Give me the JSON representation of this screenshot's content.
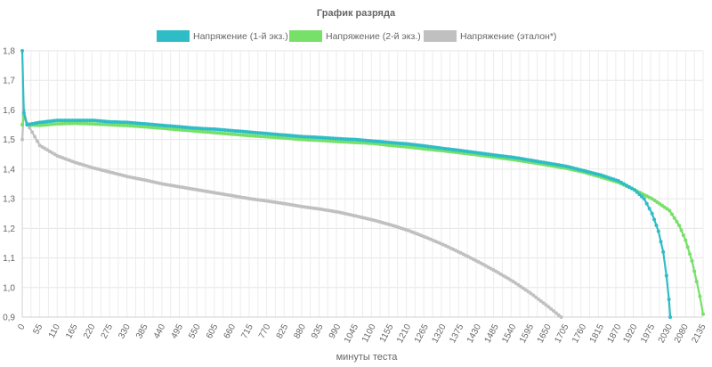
{
  "chart_data": {
    "type": "line",
    "title": "График разряда",
    "xlabel": "минуты теста",
    "ylabel": "",
    "ylim": [
      0.9,
      1.8
    ],
    "yticks": [
      "1,8",
      "1,7",
      "1,6",
      "1,5",
      "1,4",
      "1,3",
      "1,2",
      "1,1",
      "1,0",
      "0,9"
    ],
    "xlim": [
      0,
      2135
    ],
    "xtick_labels": [
      "0",
      "55",
      "110",
      "165",
      "220",
      "275",
      "330",
      "385",
      "440",
      "495",
      "550",
      "605",
      "660",
      "715",
      "770",
      "825",
      "880",
      "935",
      "990",
      "1045",
      "1100",
      "1155",
      "1210",
      "1265",
      "1320",
      "1375",
      "1430",
      "1485",
      "1540",
      "1595",
      "1650",
      "1705",
      "1760",
      "1815",
      "1870",
      "1920",
      "1975",
      "2030",
      "2080",
      "2135"
    ],
    "grid": true,
    "legend_position": "top",
    "series": [
      {
        "name": "Напряжение (1-й экз.)",
        "color": "#2ebdc7",
        "points": [
          [
            0,
            1.8
          ],
          [
            5,
            1.59
          ],
          [
            15,
            1.55
          ],
          [
            55,
            1.558
          ],
          [
            110,
            1.565
          ],
          [
            165,
            1.565
          ],
          [
            220,
            1.565
          ],
          [
            275,
            1.56
          ],
          [
            330,
            1.558
          ],
          [
            385,
            1.553
          ],
          [
            440,
            1.548
          ],
          [
            495,
            1.543
          ],
          [
            550,
            1.538
          ],
          [
            605,
            1.535
          ],
          [
            660,
            1.53
          ],
          [
            715,
            1.525
          ],
          [
            770,
            1.52
          ],
          [
            825,
            1.515
          ],
          [
            880,
            1.51
          ],
          [
            935,
            1.507
          ],
          [
            990,
            1.503
          ],
          [
            1045,
            1.5
          ],
          [
            1100,
            1.495
          ],
          [
            1155,
            1.49
          ],
          [
            1210,
            1.485
          ],
          [
            1265,
            1.478
          ],
          [
            1320,
            1.47
          ],
          [
            1375,
            1.463
          ],
          [
            1430,
            1.455
          ],
          [
            1485,
            1.447
          ],
          [
            1540,
            1.44
          ],
          [
            1595,
            1.43
          ],
          [
            1650,
            1.42
          ],
          [
            1705,
            1.41
          ],
          [
            1760,
            1.395
          ],
          [
            1815,
            1.38
          ],
          [
            1870,
            1.36
          ],
          [
            1920,
            1.33
          ],
          [
            1950,
            1.3
          ],
          [
            1975,
            1.25
          ],
          [
            1995,
            1.19
          ],
          [
            2010,
            1.12
          ],
          [
            2020,
            1.04
          ],
          [
            2028,
            0.96
          ],
          [
            2032,
            0.9
          ]
        ]
      },
      {
        "name": "Напряжение (2-й экз.)",
        "color": "#77e069",
        "points": [
          [
            0,
            1.55
          ],
          [
            5,
            1.58
          ],
          [
            15,
            1.55
          ],
          [
            55,
            1.548
          ],
          [
            110,
            1.553
          ],
          [
            165,
            1.555
          ],
          [
            220,
            1.553
          ],
          [
            275,
            1.55
          ],
          [
            330,
            1.547
          ],
          [
            385,
            1.543
          ],
          [
            440,
            1.538
          ],
          [
            495,
            1.533
          ],
          [
            550,
            1.528
          ],
          [
            605,
            1.523
          ],
          [
            660,
            1.518
          ],
          [
            715,
            1.513
          ],
          [
            770,
            1.509
          ],
          [
            825,
            1.505
          ],
          [
            880,
            1.5
          ],
          [
            935,
            1.497
          ],
          [
            990,
            1.493
          ],
          [
            1045,
            1.49
          ],
          [
            1100,
            1.487
          ],
          [
            1155,
            1.48
          ],
          [
            1210,
            1.475
          ],
          [
            1265,
            1.468
          ],
          [
            1320,
            1.462
          ],
          [
            1375,
            1.455
          ],
          [
            1430,
            1.448
          ],
          [
            1485,
            1.44
          ],
          [
            1540,
            1.432
          ],
          [
            1595,
            1.423
          ],
          [
            1650,
            1.413
          ],
          [
            1705,
            1.403
          ],
          [
            1760,
            1.39
          ],
          [
            1815,
            1.373
          ],
          [
            1870,
            1.355
          ],
          [
            1920,
            1.33
          ],
          [
            1975,
            1.3
          ],
          [
            2030,
            1.26
          ],
          [
            2060,
            1.21
          ],
          [
            2080,
            1.16
          ],
          [
            2100,
            1.09
          ],
          [
            2115,
            1.02
          ],
          [
            2125,
            0.97
          ],
          [
            2135,
            0.91
          ]
        ]
      },
      {
        "name": "Напряжение (эталон*)",
        "color": "#c0c0c0",
        "points": [
          [
            0,
            1.5
          ],
          [
            5,
            1.6
          ],
          [
            15,
            1.555
          ],
          [
            55,
            1.48
          ],
          [
            110,
            1.445
          ],
          [
            165,
            1.423
          ],
          [
            220,
            1.405
          ],
          [
            275,
            1.39
          ],
          [
            330,
            1.375
          ],
          [
            385,
            1.363
          ],
          [
            440,
            1.35
          ],
          [
            495,
            1.34
          ],
          [
            550,
            1.33
          ],
          [
            605,
            1.32
          ],
          [
            660,
            1.31
          ],
          [
            715,
            1.3
          ],
          [
            770,
            1.292
          ],
          [
            825,
            1.283
          ],
          [
            880,
            1.273
          ],
          [
            935,
            1.265
          ],
          [
            990,
            1.255
          ],
          [
            1045,
            1.242
          ],
          [
            1100,
            1.228
          ],
          [
            1155,
            1.212
          ],
          [
            1210,
            1.193
          ],
          [
            1265,
            1.17
          ],
          [
            1320,
            1.145
          ],
          [
            1375,
            1.117
          ],
          [
            1430,
            1.087
          ],
          [
            1485,
            1.055
          ],
          [
            1540,
            1.02
          ],
          [
            1595,
            0.98
          ],
          [
            1650,
            0.935
          ],
          [
            1690,
            0.9
          ]
        ]
      }
    ]
  }
}
